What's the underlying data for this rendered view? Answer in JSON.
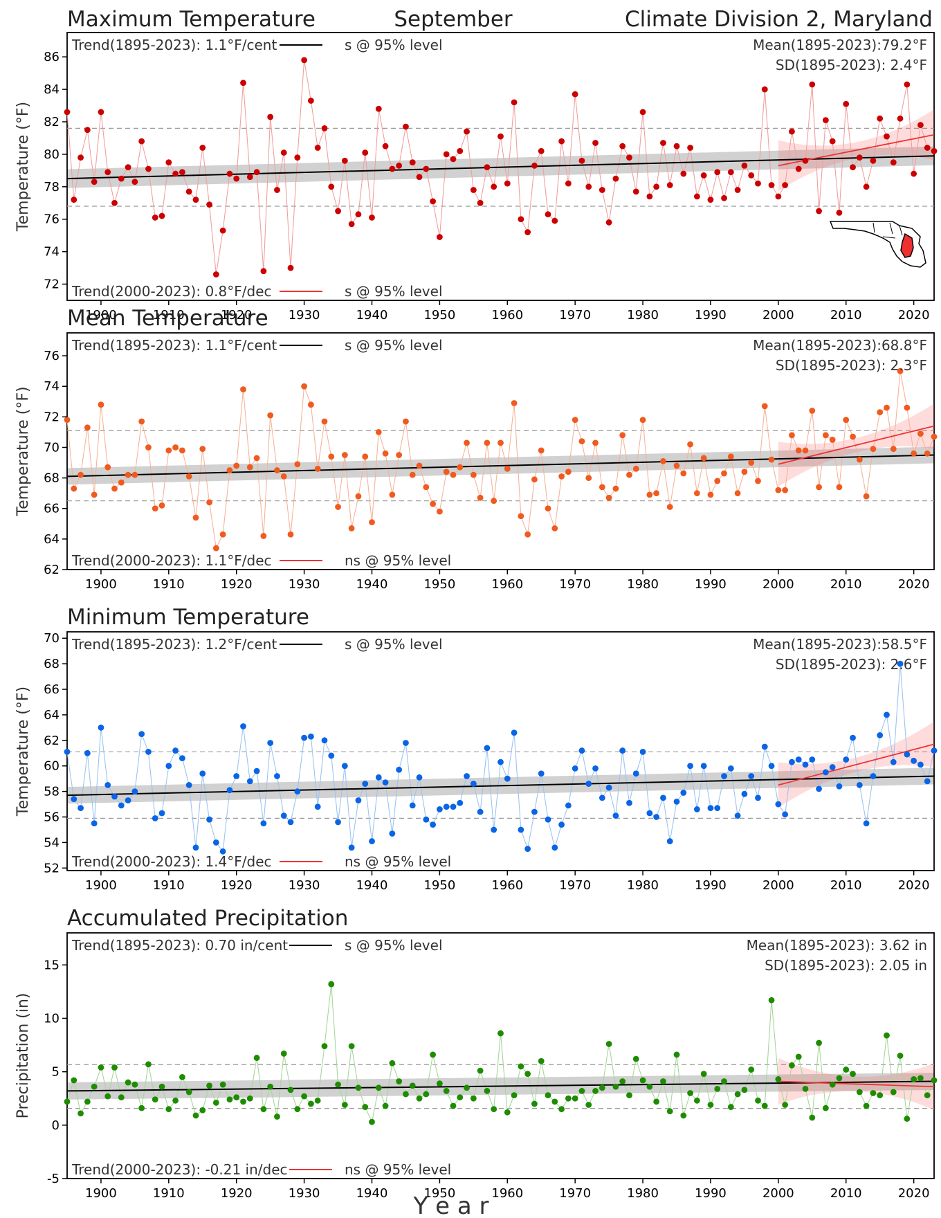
{
  "header": {
    "left_title": "Maximum Temperature",
    "center_title": "September",
    "right_title": "Climate Division 2, Maryland"
  },
  "x_axis_label": "Y e a r",
  "colors": {
    "max": "#cc0000",
    "mean": "#f05a1e",
    "min": "#0a64e6",
    "precip": "#1e8c00",
    "trend_long": "#000000",
    "trend_recent": "#ee3333"
  },
  "chart_data": [
    {
      "type": "scatter",
      "key": "max",
      "title": "Maximum Temperature",
      "ylabel": "Temperature (°F)",
      "xlim": [
        1895,
        2023
      ],
      "ylim": [
        71,
        87.5
      ],
      "yticks": [
        72,
        74,
        76,
        78,
        80,
        82,
        84,
        86
      ],
      "xticks": [
        1900,
        1910,
        1920,
        1930,
        1940,
        1950,
        1960,
        1970,
        1980,
        1990,
        2000,
        2010,
        2020
      ],
      "trend_long_label": "Trend(1895-2023):  1.1°F/cent",
      "trend_long_sig": "s @ 95% level",
      "trend_recent_label": "Trend(2000-2023):  0.8°F/dec",
      "trend_recent_sig": "s @ 95% level",
      "mean_label": "Mean(1895-2023):79.2°F",
      "sd_label": "SD(1895-2023): 2.4°F",
      "mean": 79.2,
      "sd": 2.4,
      "trend_long": {
        "x": [
          1895,
          2023
        ],
        "y": [
          78.5,
          79.9
        ]
      },
      "trend_recent": {
        "x": [
          2000,
          2023
        ],
        "y": [
          79.3,
          81.2
        ]
      },
      "x": [
        1895,
        1896,
        1897,
        1898,
        1899,
        1900,
        1901,
        1902,
        1903,
        1904,
        1905,
        1906,
        1907,
        1908,
        1909,
        1910,
        1911,
        1912,
        1913,
        1914,
        1915,
        1916,
        1917,
        1918,
        1919,
        1920,
        1921,
        1922,
        1923,
        1924,
        1925,
        1926,
        1927,
        1928,
        1929,
        1930,
        1931,
        1932,
        1933,
        1934,
        1935,
        1936,
        1937,
        1938,
        1939,
        1940,
        1941,
        1942,
        1943,
        1944,
        1945,
        1946,
        1947,
        1948,
        1949,
        1950,
        1951,
        1952,
        1953,
        1954,
        1955,
        1956,
        1957,
        1958,
        1959,
        1960,
        1961,
        1962,
        1963,
        1964,
        1965,
        1966,
        1967,
        1968,
        1969,
        1970,
        1971,
        1972,
        1973,
        1974,
        1975,
        1976,
        1977,
        1978,
        1979,
        1980,
        1981,
        1982,
        1983,
        1984,
        1985,
        1986,
        1987,
        1988,
        1989,
        1990,
        1991,
        1992,
        1993,
        1994,
        1995,
        1996,
        1997,
        1998,
        1999,
        2000,
        2001,
        2002,
        2003,
        2004,
        2005,
        2006,
        2007,
        2008,
        2009,
        2010,
        2011,
        2012,
        2013,
        2014,
        2015,
        2016,
        2017,
        2018,
        2019,
        2020,
        2021,
        2022,
        2023
      ],
      "values": [
        82.6,
        77.2,
        79.8,
        81.5,
        78.3,
        82.6,
        78.9,
        77.0,
        78.5,
        79.2,
        78.3,
        80.8,
        79.1,
        76.1,
        76.2,
        79.5,
        78.8,
        78.9,
        77.7,
        77.2,
        80.4,
        76.9,
        72.6,
        75.3,
        78.8,
        78.5,
        84.4,
        78.6,
        78.9,
        72.8,
        82.3,
        77.8,
        80.1,
        73.0,
        79.8,
        85.8,
        83.3,
        80.4,
        81.6,
        78.0,
        76.5,
        79.6,
        75.7,
        76.3,
        80.1,
        76.1,
        82.8,
        80.5,
        79.1,
        79.3,
        81.7,
        79.5,
        78.6,
        79.1,
        77.1,
        74.9,
        80.0,
        79.7,
        80.2,
        81.4,
        77.8,
        77.0,
        79.2,
        78.0,
        81.1,
        78.2,
        83.2,
        76.0,
        75.2,
        79.3,
        80.2,
        76.3,
        75.9,
        80.8,
        78.2,
        83.7,
        79.6,
        78.0,
        80.7,
        77.8,
        75.8,
        78.5,
        80.5,
        79.8,
        77.7,
        82.6,
        77.4,
        78.0,
        80.7,
        78.1,
        80.5,
        78.8,
        80.4,
        77.4,
        78.7,
        77.2,
        78.9,
        77.3,
        78.9,
        77.8,
        79.3,
        78.7,
        78.2,
        84.0,
        78.1,
        77.4,
        78.1,
        81.4,
        79.1,
        79.6,
        84.3,
        76.5,
        82.1,
        80.8,
        76.4,
        83.1,
        79.2,
        79.8,
        78.0,
        79.6,
        82.2,
        81.1,
        79.5,
        82.2,
        84.3,
        78.8,
        81.8,
        80.4,
        80.2
      ]
    },
    {
      "type": "scatter",
      "key": "mean",
      "title": "Mean Temperature",
      "ylabel": "Temperature (°F)",
      "xlim": [
        1895,
        2023
      ],
      "ylim": [
        62,
        77.5
      ],
      "yticks": [
        62,
        64,
        66,
        68,
        70,
        72,
        74,
        76
      ],
      "xticks": [
        1900,
        1910,
        1920,
        1930,
        1940,
        1950,
        1960,
        1970,
        1980,
        1990,
        2000,
        2010,
        2020
      ],
      "trend_long_label": "Trend(1895-2023):  1.1°F/cent",
      "trend_long_sig": "s @ 95% level",
      "trend_recent_label": "Trend(2000-2023):  1.1°F/dec",
      "trend_recent_sig": "ns @ 95% level",
      "mean_label": "Mean(1895-2023):68.8°F",
      "sd_label": "SD(1895-2023): 2.3°F",
      "mean": 68.8,
      "sd": 2.3,
      "trend_long": {
        "x": [
          1895,
          2023
        ],
        "y": [
          68.1,
          69.5
        ]
      },
      "trend_recent": {
        "x": [
          2000,
          2023
        ],
        "y": [
          68.9,
          71.4
        ]
      },
      "x": [
        1895,
        1896,
        1897,
        1898,
        1899,
        1900,
        1901,
        1902,
        1903,
        1904,
        1905,
        1906,
        1907,
        1908,
        1909,
        1910,
        1911,
        1912,
        1913,
        1914,
        1915,
        1916,
        1917,
        1918,
        1919,
        1920,
        1921,
        1922,
        1923,
        1924,
        1925,
        1926,
        1927,
        1928,
        1929,
        1930,
        1931,
        1932,
        1933,
        1934,
        1935,
        1936,
        1937,
        1938,
        1939,
        1940,
        1941,
        1942,
        1943,
        1944,
        1945,
        1946,
        1947,
        1948,
        1949,
        1950,
        1951,
        1952,
        1953,
        1954,
        1955,
        1956,
        1957,
        1958,
        1959,
        1960,
        1961,
        1962,
        1963,
        1964,
        1965,
        1966,
        1967,
        1968,
        1969,
        1970,
        1971,
        1972,
        1973,
        1974,
        1975,
        1976,
        1977,
        1978,
        1979,
        1980,
        1981,
        1982,
        1983,
        1984,
        1985,
        1986,
        1987,
        1988,
        1989,
        1990,
        1991,
        1992,
        1993,
        1994,
        1995,
        1996,
        1997,
        1998,
        1999,
        2000,
        2001,
        2002,
        2003,
        2004,
        2005,
        2006,
        2007,
        2008,
        2009,
        2010,
        2011,
        2012,
        2013,
        2014,
        2015,
        2016,
        2017,
        2018,
        2019,
        2020,
        2021,
        2022,
        2023
      ],
      "values": [
        71.8,
        67.3,
        68.2,
        71.3,
        66.9,
        72.8,
        68.7,
        67.3,
        67.7,
        68.2,
        68.2,
        71.7,
        70.0,
        66.0,
        66.2,
        69.8,
        70.0,
        69.8,
        68.1,
        65.4,
        69.9,
        66.4,
        63.4,
        64.3,
        68.5,
        68.8,
        73.8,
        68.7,
        69.3,
        64.2,
        72.1,
        68.5,
        68.1,
        64.3,
        68.9,
        74.0,
        72.8,
        68.6,
        71.7,
        69.4,
        66.1,
        69.5,
        64.7,
        66.8,
        69.4,
        65.1,
        71.0,
        69.6,
        66.9,
        69.5,
        71.7,
        68.2,
        68.8,
        67.4,
        66.3,
        65.8,
        68.4,
        68.2,
        68.7,
        70.3,
        68.2,
        66.7,
        70.3,
        66.5,
        70.3,
        68.6,
        72.9,
        65.5,
        64.3,
        67.9,
        69.8,
        66.0,
        64.7,
        68.1,
        68.4,
        71.8,
        70.4,
        68.0,
        70.3,
        67.4,
        66.7,
        67.3,
        70.8,
        68.2,
        68.6,
        71.8,
        66.9,
        67.0,
        69.1,
        66.1,
        68.8,
        68.3,
        70.2,
        67.0,
        69.3,
        66.9,
        67.8,
        68.3,
        69.4,
        67.0,
        68.4,
        69.0,
        67.8,
        72.7,
        69.2,
        67.2,
        67.2,
        70.8,
        69.8,
        69.8,
        72.4,
        67.4,
        70.8,
        70.5,
        67.4,
        71.8,
        70.7,
        69.2,
        66.8,
        69.9,
        72.3,
        72.6,
        69.9,
        75.0,
        72.6,
        69.6,
        70.9,
        69.6,
        70.7
      ]
    },
    {
      "type": "scatter",
      "key": "min",
      "title": "Minimum Temperature",
      "ylabel": "Temperature (°F)",
      "xlim": [
        1895,
        2023
      ],
      "ylim": [
        51.8,
        70.5
      ],
      "yticks": [
        52,
        54,
        56,
        58,
        60,
        62,
        64,
        66,
        68,
        70
      ],
      "xticks": [
        1900,
        1910,
        1920,
        1930,
        1940,
        1950,
        1960,
        1970,
        1980,
        1990,
        2000,
        2010,
        2020
      ],
      "trend_long_label": "Trend(1895-2023):  1.2°F/cent",
      "trend_long_sig": "s @ 95% level",
      "trend_recent_label": "Trend(2000-2023):  1.4°F/dec",
      "trend_recent_sig": "ns @ 95% level",
      "mean_label": "Mean(1895-2023):58.5°F",
      "sd_label": "SD(1895-2023): 2.6°F",
      "mean": 58.5,
      "sd": 2.6,
      "trend_long": {
        "x": [
          1895,
          2023
        ],
        "y": [
          57.7,
          59.2
        ]
      },
      "trend_recent": {
        "x": [
          2000,
          2023
        ],
        "y": [
          58.5,
          61.7
        ]
      },
      "x": [
        1895,
        1896,
        1897,
        1898,
        1899,
        1900,
        1901,
        1902,
        1903,
        1904,
        1905,
        1906,
        1907,
        1908,
        1909,
        1910,
        1911,
        1912,
        1913,
        1914,
        1915,
        1916,
        1917,
        1918,
        1919,
        1920,
        1921,
        1922,
        1923,
        1924,
        1925,
        1926,
        1927,
        1928,
        1929,
        1930,
        1931,
        1932,
        1933,
        1934,
        1935,
        1936,
        1937,
        1938,
        1939,
        1940,
        1941,
        1942,
        1943,
        1944,
        1945,
        1946,
        1947,
        1948,
        1949,
        1950,
        1951,
        1952,
        1953,
        1954,
        1955,
        1956,
        1957,
        1958,
        1959,
        1960,
        1961,
        1962,
        1963,
        1964,
        1965,
        1966,
        1967,
        1968,
        1969,
        1970,
        1971,
        1972,
        1973,
        1974,
        1975,
        1976,
        1977,
        1978,
        1979,
        1980,
        1981,
        1982,
        1983,
        1984,
        1985,
        1986,
        1987,
        1988,
        1989,
        1990,
        1991,
        1992,
        1993,
        1994,
        1995,
        1996,
        1997,
        1998,
        1999,
        2000,
        2001,
        2002,
        2003,
        2004,
        2005,
        2006,
        2007,
        2008,
        2009,
        2010,
        2011,
        2012,
        2013,
        2014,
        2015,
        2016,
        2017,
        2018,
        2019,
        2020,
        2021,
        2022,
        2023
      ],
      "values": [
        61.1,
        57.4,
        56.7,
        61.0,
        55.5,
        63.0,
        58.5,
        57.6,
        56.9,
        57.3,
        58.0,
        62.5,
        61.1,
        55.9,
        56.3,
        60.0,
        61.2,
        60.6,
        58.5,
        53.6,
        59.4,
        55.8,
        54.0,
        53.3,
        58.1,
        59.2,
        63.1,
        58.8,
        59.6,
        55.5,
        61.8,
        59.2,
        56.1,
        55.6,
        58.0,
        62.2,
        62.3,
        56.8,
        62.0,
        60.8,
        55.6,
        60.0,
        53.6,
        57.3,
        58.6,
        54.1,
        59.1,
        58.7,
        54.7,
        59.7,
        61.8,
        56.9,
        59.1,
        55.8,
        55.4,
        56.6,
        56.8,
        56.8,
        57.1,
        59.2,
        58.6,
        56.4,
        61.4,
        55.0,
        60.3,
        59.0,
        62.6,
        55.0,
        53.5,
        56.4,
        59.4,
        55.8,
        53.6,
        55.4,
        56.9,
        59.8,
        61.2,
        58.6,
        59.8,
        57.5,
        58.3,
        56.1,
        61.2,
        57.1,
        59.4,
        61.1,
        56.3,
        56.0,
        57.5,
        54.1,
        57.2,
        57.9,
        60.0,
        56.6,
        60.0,
        56.7,
        56.7,
        59.2,
        59.8,
        56.1,
        57.8,
        59.2,
        57.5,
        61.5,
        60.0,
        57.0,
        56.2,
        60.3,
        60.5,
        60.1,
        60.5,
        58.2,
        59.5,
        59.9,
        58.4,
        60.5,
        62.2,
        58.5,
        55.5,
        59.2,
        62.4,
        64.0,
        60.3,
        68.0,
        60.9,
        60.4,
        60.1,
        58.8,
        61.2
      ]
    },
    {
      "type": "scatter",
      "key": "precip",
      "title": "Accumulated Precipitation",
      "ylabel": "Precipitation (in)",
      "xlim": [
        1895,
        2023
      ],
      "ylim": [
        -5,
        18
      ],
      "yticks": [
        -5,
        0,
        5,
        10,
        15
      ],
      "xticks": [
        1900,
        1910,
        1920,
        1930,
        1940,
        1950,
        1960,
        1970,
        1980,
        1990,
        2000,
        2010,
        2020
      ],
      "trend_long_label": "Trend(1895-2023):  0.70 in/cent",
      "trend_long_sig": "s @ 95% level",
      "trend_recent_label": "Trend(2000-2023): -0.21 in/dec",
      "trend_recent_sig": "ns @ 95% level",
      "mean_label": "Mean(1895-2023): 3.62 in",
      "sd_label": "SD(1895-2023): 2.05 in",
      "mean": 3.62,
      "sd": 2.05,
      "trend_long": {
        "x": [
          1895,
          2023
        ],
        "y": [
          3.2,
          4.1
        ]
      },
      "trend_recent": {
        "x": [
          2000,
          2023
        ],
        "y": [
          4.1,
          3.6
        ]
      },
      "x": [
        1895,
        1896,
        1897,
        1898,
        1899,
        1900,
        1901,
        1902,
        1903,
        1904,
        1905,
        1906,
        1907,
        1908,
        1909,
        1910,
        1911,
        1912,
        1913,
        1914,
        1915,
        1916,
        1917,
        1918,
        1919,
        1920,
        1921,
        1922,
        1923,
        1924,
        1925,
        1926,
        1927,
        1928,
        1929,
        1930,
        1931,
        1932,
        1933,
        1934,
        1935,
        1936,
        1937,
        1938,
        1939,
        1940,
        1941,
        1942,
        1943,
        1944,
        1945,
        1946,
        1947,
        1948,
        1949,
        1950,
        1951,
        1952,
        1953,
        1954,
        1955,
        1956,
        1957,
        1958,
        1959,
        1960,
        1961,
        1962,
        1963,
        1964,
        1965,
        1966,
        1967,
        1968,
        1969,
        1970,
        1971,
        1972,
        1973,
        1974,
        1975,
        1976,
        1977,
        1978,
        1979,
        1980,
        1981,
        1982,
        1983,
        1984,
        1985,
        1986,
        1987,
        1988,
        1989,
        1990,
        1991,
        1992,
        1993,
        1994,
        1995,
        1996,
        1997,
        1998,
        1999,
        2000,
        2001,
        2002,
        2003,
        2004,
        2005,
        2006,
        2007,
        2008,
        2009,
        2010,
        2011,
        2012,
        2013,
        2014,
        2015,
        2016,
        2017,
        2018,
        2019,
        2020,
        2021,
        2022,
        2023
      ],
      "values": [
        2.2,
        4.2,
        1.1,
        2.2,
        3.6,
        5.4,
        2.7,
        5.4,
        2.6,
        4.0,
        3.8,
        1.6,
        5.7,
        2.4,
        3.6,
        1.5,
        2.3,
        4.5,
        3.1,
        0.9,
        1.4,
        3.7,
        2.1,
        3.8,
        2.4,
        2.6,
        2.2,
        2.5,
        6.3,
        1.5,
        3.6,
        0.8,
        6.7,
        3.3,
        1.5,
        2.7,
        2.0,
        2.3,
        7.4,
        13.2,
        3.8,
        1.9,
        7.4,
        3.5,
        1.7,
        0.3,
        3.5,
        1.8,
        5.8,
        4.1,
        2.9,
        3.7,
        2.5,
        2.9,
        6.6,
        3.9,
        3.2,
        1.8,
        2.6,
        3.5,
        2.5,
        5.1,
        3.2,
        1.5,
        8.6,
        1.2,
        2.8,
        5.5,
        4.8,
        2.0,
        6.0,
        2.8,
        2.2,
        1.5,
        2.5,
        2.5,
        3.2,
        1.9,
        3.2,
        3.5,
        7.6,
        3.6,
        4.1,
        2.8,
        6.2,
        4.2,
        3.6,
        2.2,
        4.1,
        1.3,
        6.6,
        0.9,
        3.0,
        2.3,
        4.8,
        1.9,
        3.4,
        4.1,
        1.7,
        2.9,
        3.3,
        5.2,
        2.3,
        1.8,
        11.7,
        4.3,
        1.9,
        5.6,
        6.4,
        3.4,
        0.7,
        7.7,
        1.6,
        3.8,
        4.4,
        5.2,
        4.8,
        3.1,
        1.8,
        3.0,
        2.8,
        8.4,
        3.1,
        6.5,
        0.6,
        4.3,
        4.4,
        2.8,
        4.2
      ]
    }
  ]
}
